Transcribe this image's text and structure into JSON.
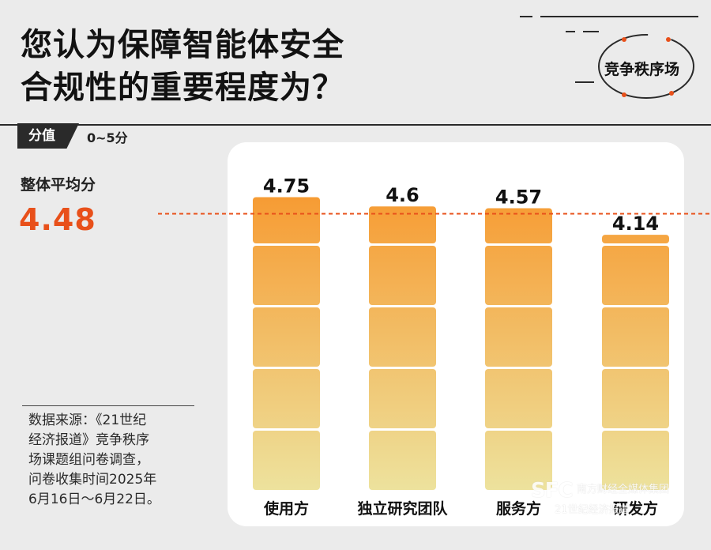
{
  "title_lines": [
    "您认为保障智能体安全",
    "合规性的重要程度为？"
  ],
  "score_tag": "分值",
  "score_range": "0~5分",
  "average": {
    "label": "整体平均分",
    "value": 4.48,
    "value_text": "4.48",
    "color": "#e8501a"
  },
  "source_lines": [
    "数据来源：《21世纪",
    "经济报道》竞争秩序",
    "场课题组问卷调查，",
    "问卷收集时间2025年",
    "6月16日～6月22日。"
  ],
  "logo_text": "竞争秩序场",
  "watermark": {
    "mark": "SFC",
    "line1": "南方财经全媒体集团",
    "line2": "21世纪经济报道"
  },
  "chart_data": {
    "type": "bar",
    "categories": [
      "使用方",
      "独立研究团队",
      "服务方",
      "研发方"
    ],
    "values": [
      4.75,
      4.6,
      4.57,
      4.14
    ],
    "value_labels": [
      "4.75",
      "4.6",
      "4.57",
      "4.14"
    ],
    "ylim": [
      0,
      5
    ],
    "segments_per_bar": 5,
    "reference_line": {
      "value": 4.48,
      "style": "dashed",
      "color": "#e8501a"
    },
    "bar_colors": {
      "top": "#f7982e",
      "bottom": "#ede29d"
    },
    "grid": false,
    "legend": "none"
  }
}
